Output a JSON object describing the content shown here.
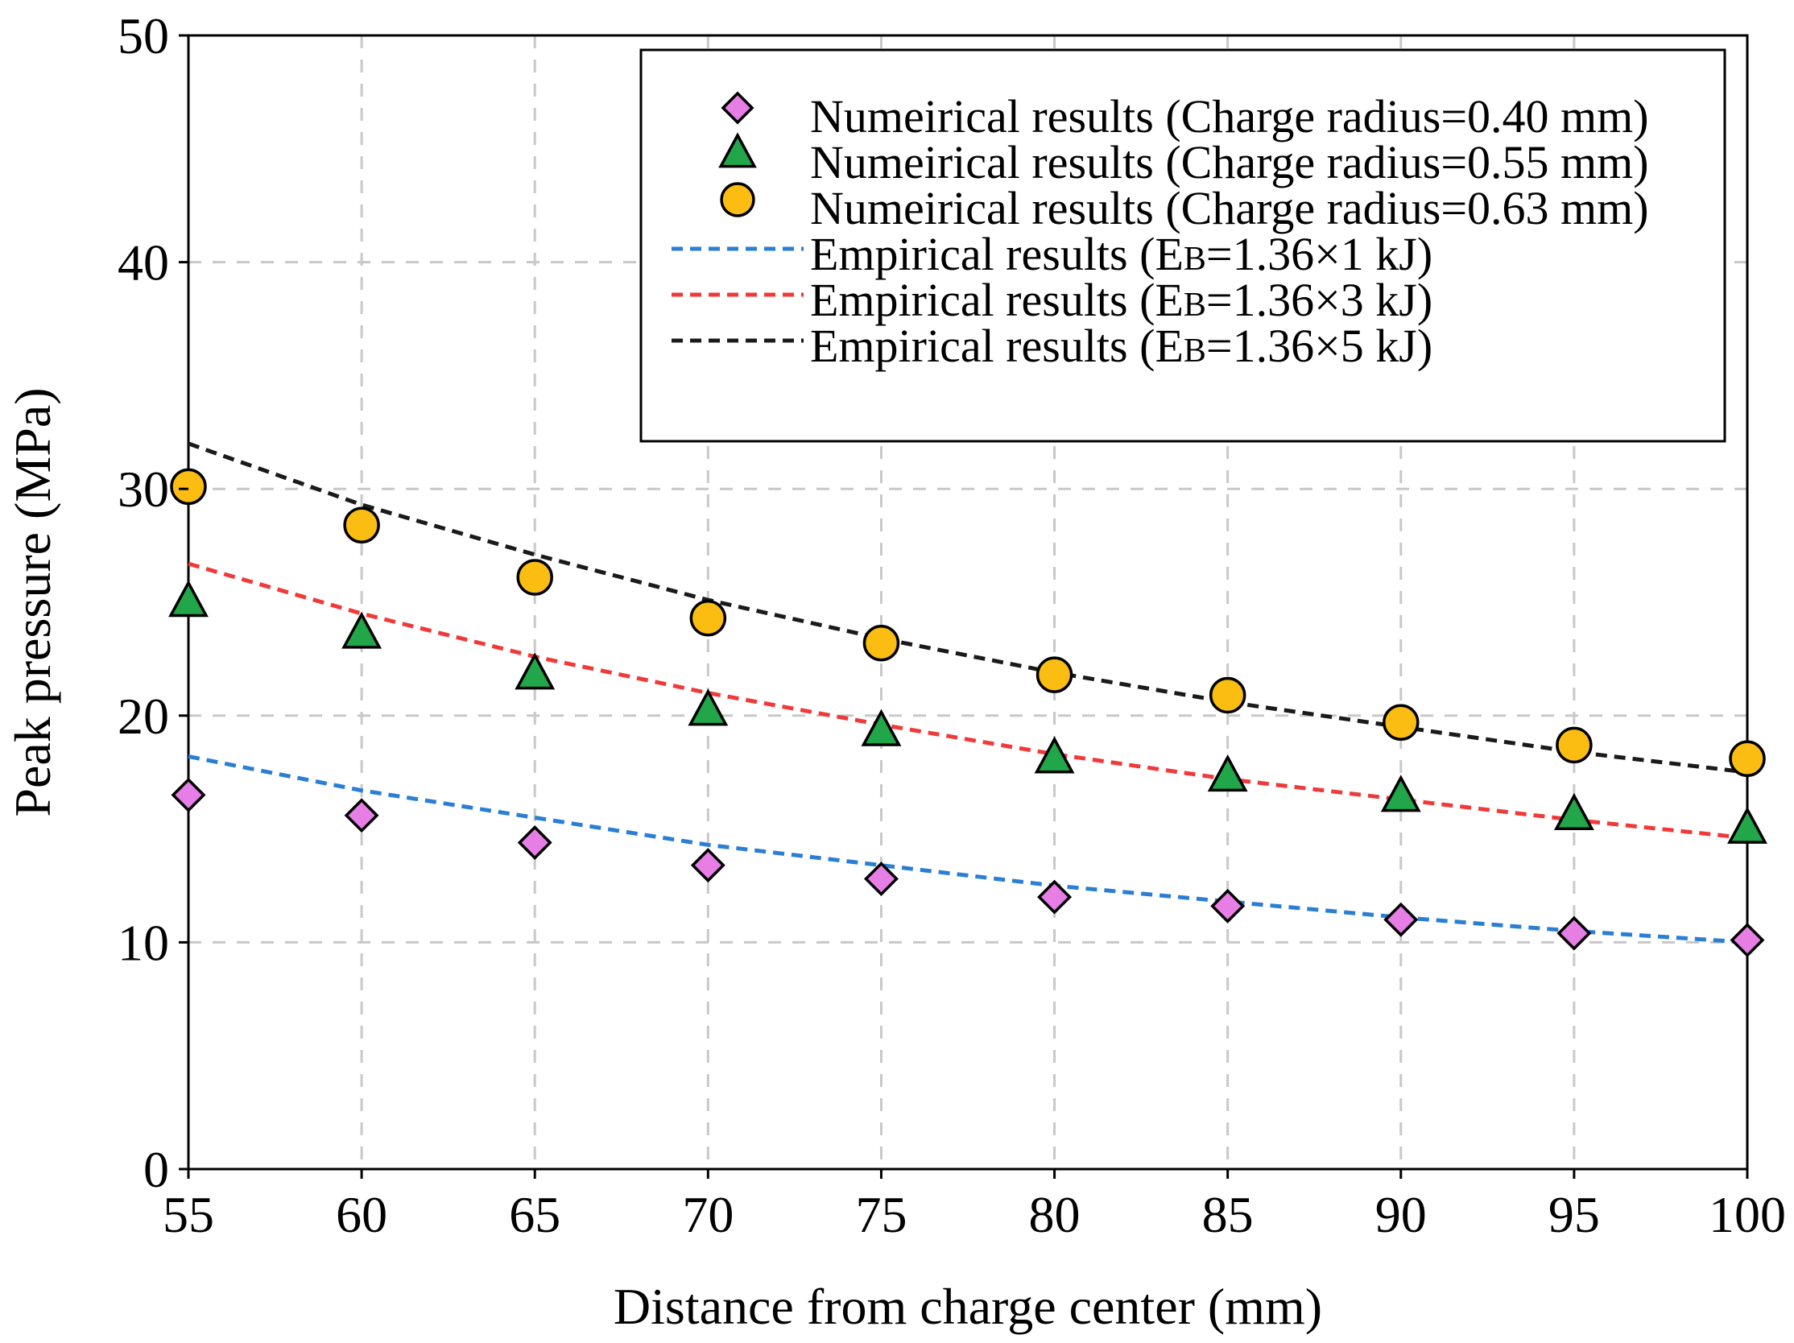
{
  "chart_data": {
    "type": "scatter",
    "xlabel": "Distance from charge center (mm)",
    "ylabel": "Peak pressure (MPa)",
    "xlim": [
      55,
      100
    ],
    "ylim": [
      0,
      50
    ],
    "xticks": [
      55,
      60,
      65,
      70,
      75,
      80,
      85,
      90,
      95,
      100
    ],
    "yticks": [
      0,
      10,
      20,
      30,
      40,
      50
    ],
    "grid": true,
    "legend_position": "top-right",
    "x": [
      55,
      60,
      65,
      70,
      75,
      80,
      85,
      90,
      95,
      100
    ],
    "series": [
      {
        "name": "Numeirical results (Charge radius=0.40 mm)",
        "kind": "marker",
        "marker": "diamond",
        "color": "#e67ee6",
        "values": [
          16.5,
          15.6,
          14.4,
          13.4,
          12.8,
          12.0,
          11.6,
          11.0,
          10.4,
          10.1
        ]
      },
      {
        "name": "Numeirical results (Charge radius=0.55 mm)",
        "kind": "marker",
        "marker": "triangle",
        "color": "#22a64a",
        "values": [
          25.0,
          23.6,
          21.8,
          20.2,
          19.3,
          18.1,
          17.3,
          16.4,
          15.6,
          15.0
        ]
      },
      {
        "name": "Numeirical results (Charge radius=0.63 mm)",
        "kind": "marker",
        "marker": "circle",
        "color": "#fbbd12",
        "values": [
          30.1,
          28.4,
          26.1,
          24.3,
          23.2,
          21.8,
          20.9,
          19.7,
          18.7,
          18.1
        ]
      },
      {
        "name": "Empirical results (EB=1.36×1 kJ)",
        "kind": "line",
        "color": "#2a7fd4",
        "values": [
          18.2,
          16.7,
          15.5,
          14.3,
          13.4,
          12.5,
          11.8,
          11.1,
          10.5,
          10.0
        ]
      },
      {
        "name": "Empirical results (EB=1.36×3 kJ)",
        "kind": "line",
        "color": "#f03a3a",
        "values": [
          26.7,
          24.5,
          22.6,
          21.0,
          19.6,
          18.3,
          17.2,
          16.3,
          15.4,
          14.6
        ]
      },
      {
        "name": "Empirical results (EB=1.36×5 kJ)",
        "kind": "line",
        "color": "#1a1a1a",
        "values": [
          32.0,
          29.3,
          27.1,
          25.1,
          23.4,
          21.9,
          20.6,
          19.5,
          18.4,
          17.5
        ]
      }
    ],
    "legend": [
      {
        "prefix": "Numeirical results",
        "detail": "(Charge radius=0.40 mm)"
      },
      {
        "prefix": "Numeirical results",
        "detail": "(Charge radius=0.55 mm)"
      },
      {
        "prefix": "Numeirical results",
        "detail": "(Charge radius=0.63 mm)"
      },
      {
        "prefix": "Empirical results",
        "detail_pre": "(E",
        "detail_sub": "B",
        "detail_post": "=1.36×1 kJ)"
      },
      {
        "prefix": "Empirical results",
        "detail_pre": "(E",
        "detail_sub": "B",
        "detail_post": "=1.36×3 kJ)"
      },
      {
        "prefix": "Empirical results",
        "detail_pre": "(E",
        "detail_sub": "B",
        "detail_post": "=1.36×5 kJ)"
      }
    ]
  }
}
